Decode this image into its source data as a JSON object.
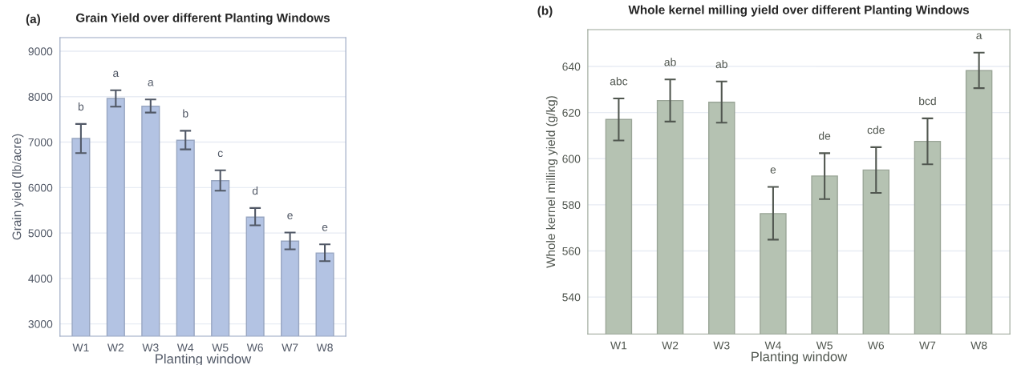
{
  "chart_data": [
    {
      "type": "bar",
      "title": "Grain Yield over different Planting Windows",
      "xlabel": "Planting window",
      "ylabel": "Grain yield (lb/acre)",
      "categories": [
        "W1",
        "W2",
        "W3",
        "W4",
        "W5",
        "W6",
        "W7",
        "W8"
      ],
      "values": [
        7080,
        7960,
        7790,
        7040,
        6150,
        5350,
        4820,
        4560
      ],
      "errors": [
        [
          6760,
          7400
        ],
        [
          7780,
          8140
        ],
        [
          7650,
          7940
        ],
        [
          6840,
          7250
        ],
        [
          5930,
          6380
        ],
        [
          5170,
          5550
        ],
        [
          4640,
          5010
        ],
        [
          4380,
          4750
        ]
      ],
      "color": "#b3c3e3",
      "ylim": [
        2730,
        9300
      ],
      "yticks": [
        3000,
        4000,
        5000,
        6000,
        7000,
        8000,
        9000
      ],
      "grid": "y",
      "annotations": [
        "(a)",
        "b",
        "a",
        "a",
        "b",
        "c",
        "d",
        "e",
        "e"
      ]
    },
    {
      "type": "bar",
      "title": "Whole kernel milling yield over different Planting Windows",
      "xlabel": "Planting window",
      "ylabel": "Whole kernel milling yield (g/kg)",
      "categories": [
        "W1",
        "W2",
        "W3",
        "W4",
        "W5",
        "W6",
        "W7",
        "W8"
      ],
      "values": [
        617.0,
        625.2,
        624.5,
        576.2,
        592.5,
        595.1,
        607.5,
        638.2
      ],
      "errors": [
        [
          607.9,
          626.1
        ],
        [
          616.1,
          634.4
        ],
        [
          615.6,
          633.5
        ],
        [
          564.9,
          587.8
        ],
        [
          582.5,
          602.4
        ],
        [
          585.2,
          605.0
        ],
        [
          597.6,
          617.5
        ],
        [
          630.6,
          646.0
        ]
      ],
      "color": "#b5c2b2",
      "ylim": [
        524,
        656
      ],
      "yticks": [
        540,
        560,
        580,
        600,
        620,
        640
      ],
      "grid": "y",
      "annotations": [
        "(b)",
        "abc",
        "ab",
        "ab",
        "e",
        "de",
        "cde",
        "bcd",
        "a"
      ]
    }
  ]
}
